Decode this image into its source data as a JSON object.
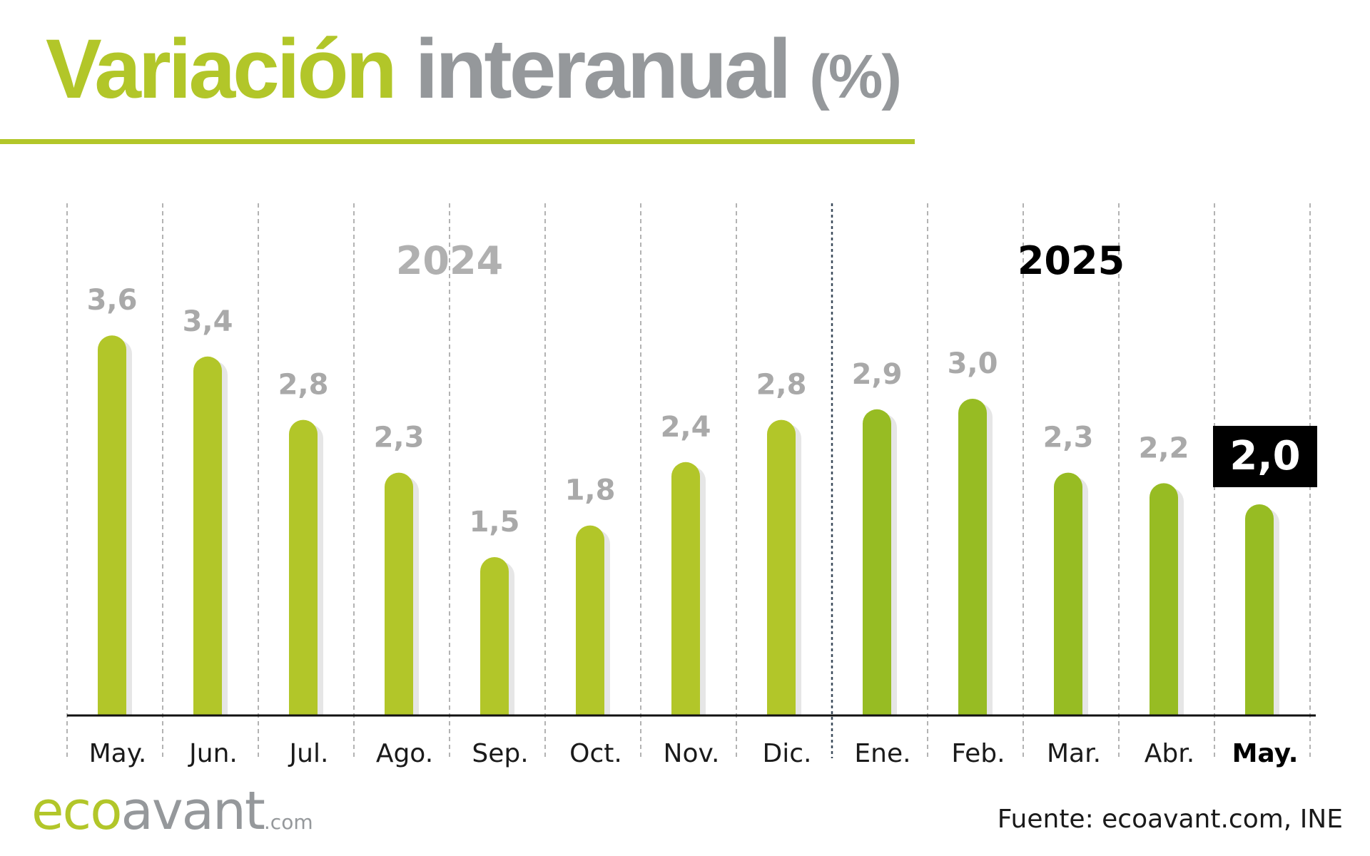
{
  "header": {
    "title_part1": "Variación",
    "title_part2": "interanual",
    "title_part3": "(%)"
  },
  "footer": {
    "logo_eco": "eco",
    "logo_avant": "avant",
    "logo_com": ".com",
    "source": "Fuente: ecoavant.com, INE"
  },
  "colors": {
    "bar_2024": "#b2c629",
    "bar_2025": "#97bc23",
    "shadow": "#e6e6e6",
    "value_label": "#a9a9a9",
    "highlight_box": "#000000",
    "grid": "#9a9a9a"
  },
  "chart_data": {
    "type": "bar",
    "title": "Variación interanual (%)",
    "xlabel": "",
    "ylabel": "",
    "ylim": [
      0,
      4.2
    ],
    "grid": true,
    "categories": [
      "May.",
      "Jun.",
      "Jul.",
      "Ago.",
      "Sep.",
      "Oct.",
      "Nov.",
      "Dic.",
      "Ene.",
      "Feb.",
      "Mar.",
      "Abr.",
      "May."
    ],
    "labels": [
      "3,6",
      "3,4",
      "2,8",
      "2,3",
      "1,5",
      "1,8",
      "2,4",
      "2,8",
      "2,9",
      "3,0",
      "2,3",
      "2,2",
      "2,0"
    ],
    "values": [
      3.6,
      3.4,
      2.8,
      2.3,
      1.5,
      1.8,
      2.4,
      2.8,
      2.9,
      3.0,
      2.3,
      2.2,
      2.0
    ],
    "groups": [
      {
        "label": "2024",
        "start": 0,
        "end": 7
      },
      {
        "label": "2025",
        "start": 8,
        "end": 12
      }
    ],
    "highlight_index": 12
  }
}
